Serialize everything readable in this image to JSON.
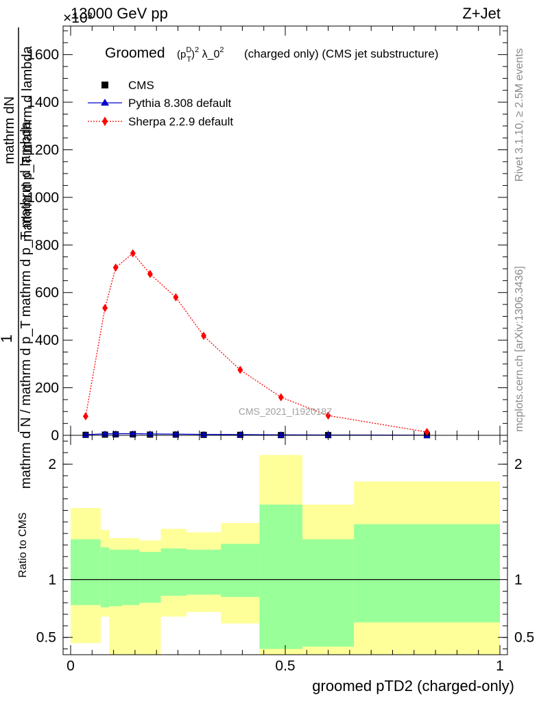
{
  "header": {
    "energy_label": "13000 GeV pp",
    "process_label": "Z+Jet",
    "exponent_label": "×10³"
  },
  "side": {
    "rivet_label": "Rivet 3.1.10, ≥ 2.5M events",
    "mcplots_label": "mcplots.cern.ch [arXiv:1306.3436]"
  },
  "chart_data": [
    {
      "type": "scatter",
      "title": "Groomed (p_T^D)^2 λ_0^2  (charged only) (CMS jet substructure)",
      "title_main": "Groomed",
      "title_rest": "(charged only) (CMS jet substructure)",
      "ylabel_top": "mathrm dN",
      "ylabel_mid": "mathrm d p_T mathrm d lambda",
      "ylabel_one": "1",
      "ylabel_bottom": "mathrm d N / mathrm d p_T mathrm d p_T mathrm d lambda",
      "watermark": "CMS_2021_I1920187",
      "y_scale_exponent": 3,
      "xlim": [
        0,
        1
      ],
      "ylim": [
        0,
        1720
      ],
      "yticks": [
        0,
        200,
        400,
        600,
        800,
        1000,
        1200,
        1400,
        1600
      ],
      "legend_position": "top-left",
      "series": [
        {
          "name": "CMS",
          "color": "#000000",
          "marker": "square",
          "x": [
            0.035,
            0.08,
            0.105,
            0.145,
            0.185,
            0.245,
            0.31,
            0.395,
            0.49,
            0.6,
            0.83
          ],
          "y": [
            2,
            3,
            4,
            4,
            3,
            3,
            2,
            2,
            1,
            1,
            0.5
          ]
        },
        {
          "name": "Pythia 8.308 default",
          "color": "#0000cc",
          "marker": "triangle",
          "x": [
            0.035,
            0.08,
            0.105,
            0.145,
            0.185,
            0.245,
            0.31,
            0.395,
            0.49,
            0.6,
            0.83
          ],
          "y": [
            3,
            6,
            7,
            7,
            6,
            5,
            4,
            3,
            2,
            1.5,
            0.5
          ]
        },
        {
          "name": "Sherpa 2.2.9 default",
          "color": "#ff0000",
          "marker": "diamond",
          "x": [
            0.035,
            0.08,
            0.105,
            0.145,
            0.185,
            0.245,
            0.31,
            0.395,
            0.49,
            0.6,
            0.83
          ],
          "y": [
            80,
            535,
            705,
            765,
            678,
            580,
            418,
            275,
            160,
            83,
            14
          ]
        }
      ]
    },
    {
      "type": "area",
      "ylabel": "Ratio to CMS",
      "xlabel": "groomed pTD2 (charged-only)",
      "xlim": [
        0,
        1
      ],
      "ylim": [
        0.35,
        2.25
      ],
      "xticks": [
        0,
        0.5,
        1
      ],
      "yticks": [
        0.5,
        1,
        2
      ],
      "ytick_labels": [
        "0.5",
        "1",
        "2"
      ],
      "xtick_labels": [
        "0",
        "0.5",
        "1"
      ],
      "reference_line": 1,
      "colors": {
        "inner": "#99ff99",
        "outer": "#ffff99"
      },
      "bins": [
        {
          "x0": 0.0,
          "x1": 0.07,
          "inner": [
            0.78,
            1.35
          ],
          "outer": [
            0.45,
            1.62
          ]
        },
        {
          "x0": 0.07,
          "x1": 0.09,
          "inner": [
            0.76,
            1.28
          ],
          "outer": [
            0.68,
            1.43
          ]
        },
        {
          "x0": 0.09,
          "x1": 0.12,
          "inner": [
            0.77,
            1.26
          ],
          "outer": [
            0.35,
            1.36
          ]
        },
        {
          "x0": 0.12,
          "x1": 0.16,
          "inner": [
            0.78,
            1.26
          ],
          "outer": [
            0.35,
            1.36
          ]
        },
        {
          "x0": 0.16,
          "x1": 0.21,
          "inner": [
            0.8,
            1.24
          ],
          "outer": [
            0.35,
            1.34
          ]
        },
        {
          "x0": 0.21,
          "x1": 0.27,
          "inner": [
            0.86,
            1.27
          ],
          "outer": [
            0.68,
            1.44
          ]
        },
        {
          "x0": 0.27,
          "x1": 0.35,
          "inner": [
            0.87,
            1.26
          ],
          "outer": [
            0.72,
            1.41
          ]
        },
        {
          "x0": 0.35,
          "x1": 0.44,
          "inner": [
            0.85,
            1.31
          ],
          "outer": [
            0.62,
            1.49
          ]
        },
        {
          "x0": 0.44,
          "x1": 0.54,
          "inner": [
            0.4,
            1.65
          ],
          "outer": [
            0.35,
            2.08
          ]
        },
        {
          "x0": 0.54,
          "x1": 0.66,
          "inner": [
            0.42,
            1.35
          ],
          "outer": [
            0.35,
            1.65
          ]
        },
        {
          "x0": 0.66,
          "x1": 1.0,
          "inner": [
            0.63,
            1.48
          ],
          "outer": [
            0.35,
            1.85
          ]
        }
      ]
    }
  ]
}
